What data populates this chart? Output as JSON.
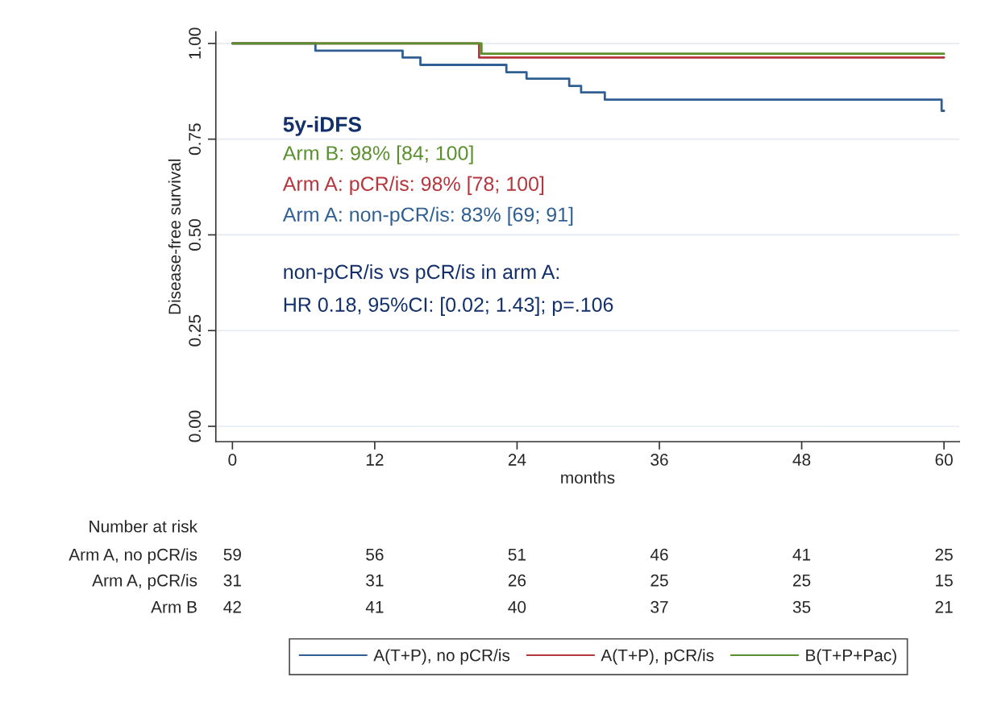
{
  "chart_data": {
    "type": "step",
    "xlabel": "months",
    "ylabel": "Disease-free survival",
    "xlim": [
      -1.4,
      61.3
    ],
    "xticks": [
      0,
      12,
      24,
      36,
      48,
      60
    ],
    "ylim": [
      -0.04,
      1.03
    ],
    "yticks": [
      {
        "value": 0,
        "label": "0.00"
      },
      {
        "value": 0.25,
        "label": "0.25"
      },
      {
        "value": 0.5,
        "label": "0.50"
      },
      {
        "value": 0.75,
        "label": "0.75"
      },
      {
        "value": 1,
        "label": "1.00"
      }
    ],
    "grid": "y",
    "legend": "bottom",
    "marker": "none",
    "line_style": "solid",
    "series": [
      {
        "name": "A(T+P), no pCR/is",
        "color": "#2f5f93",
        "x": [
          0,
          7,
          14.35,
          15.85,
          23.1,
          24.8,
          28.4,
          29.4,
          31.4,
          59.8,
          60
        ],
        "values": [
          1,
          0.981,
          0.963,
          0.944,
          0.925,
          0.908,
          0.889,
          0.872,
          0.853,
          0.824,
          0.824
        ]
      },
      {
        "name": "A(T+P), pCR/is",
        "color": "#b5363c",
        "x": [
          0,
          20.8,
          60
        ],
        "values": [
          1,
          0.963,
          0.963
        ]
      },
      {
        "name": "B(T+P+Pac)",
        "color": "#5a8f2e",
        "x": [
          0,
          21,
          60
        ],
        "values": [
          1,
          0.973,
          0.973
        ]
      }
    ],
    "annotations": [
      "5y-iDFS",
      "Arm B: 98% [84; 100]",
      "Arm A: pCR/is: 98% [78; 100]",
      "Arm A: non-pCR/is: 83% [69; 91]",
      "non-pCR/is vs pCR/is in arm A:",
      "HR 0.18, 95%CI: [0.02; 1.43]; p=.106",
      "Number at risk",
      "Arm A, no pCR/is",
      "59",
      "56",
      "51",
      "46",
      "41",
      "25",
      "Arm A, pCR/is",
      "31",
      "31",
      "26",
      "25",
      "25",
      "15",
      "Arm B",
      "42",
      "41",
      "40",
      "37",
      "35",
      "21"
    ]
  }
}
